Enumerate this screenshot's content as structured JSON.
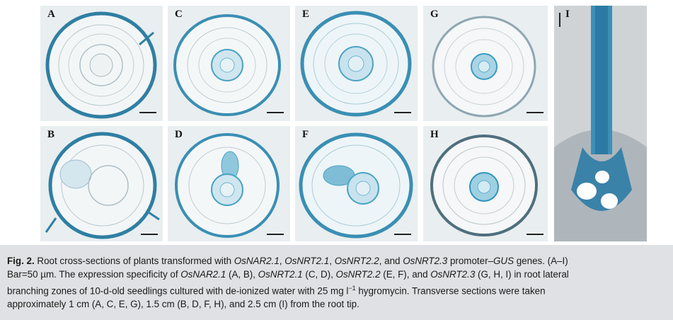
{
  "figure": {
    "panels": [
      {
        "id": "A",
        "label": "A",
        "stain": "edge"
      },
      {
        "id": "B",
        "label": "B",
        "stain": "edge"
      },
      {
        "id": "C",
        "label": "C",
        "stain": "stele"
      },
      {
        "id": "D",
        "label": "D",
        "stain": "stele"
      },
      {
        "id": "E",
        "label": "E",
        "stain": "stele"
      },
      {
        "id": "F",
        "label": "F",
        "stain": "stele"
      },
      {
        "id": "G",
        "label": "G",
        "stain": "stele"
      },
      {
        "id": "H",
        "label": "H",
        "stain": "stele"
      },
      {
        "id": "I",
        "label": "I",
        "stain": "longitudinal"
      }
    ]
  },
  "caption": {
    "fig_label": "Fig. 2.",
    "line1_a": " Root cross-sections of plants transformed with ",
    "g1": "OsNAR2.1",
    "sep1": ", ",
    "g2": "OsNRT2.1",
    "sep2": ", ",
    "g3": "OsNRT2.2",
    "sep3": ", and ",
    "g4": "OsNRT2.3",
    "line1_b": " promoter–",
    "g5": "GUS",
    "line1_c": " genes. (A–I)",
    "line2_a": "Bar=50 µm. The expression specificity of ",
    "line2_b": " (A, B), ",
    "line2_c": " (C, D), ",
    "line2_d": " (E, F), and ",
    "line2_e": " (G, H, I) in root lateral",
    "line3_a": "branching zones of 10-d-old seedlings cultured with de-ionized water with 25 mg l",
    "line3_sup": "−1",
    "line3_b": " hygromycin. Transverse sections were taken",
    "line4": "approximately 1 cm (A, C, E, G), 1.5 cm (B, D, F, H), and 2.5 cm (I) from the root tip."
  }
}
